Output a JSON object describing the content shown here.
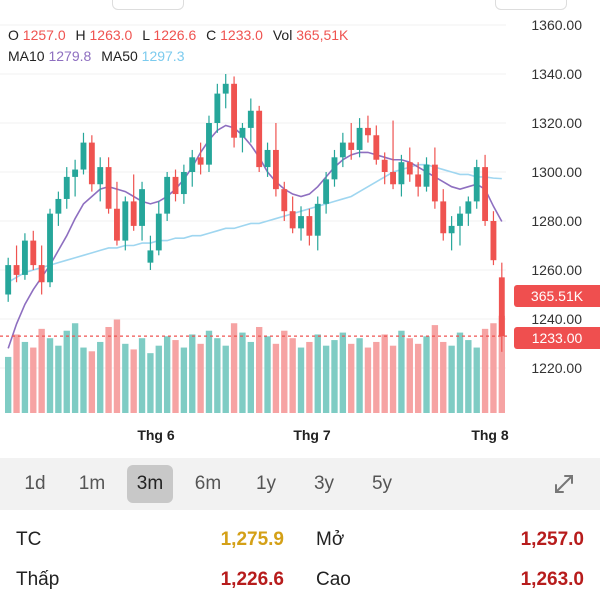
{
  "ohlc": {
    "o_label": "O",
    "o_value": "1257.0",
    "h_label": "H",
    "h_value": "1263.0",
    "l_label": "L",
    "l_value": "1226.6",
    "c_label": "C",
    "c_value": "1233.0",
    "vol_label": "Vol",
    "vol_value": "365,51K"
  },
  "ma": {
    "ma10_label": "MA10",
    "ma10_value": "1279.8",
    "ma50_label": "MA50",
    "ma50_value": "1297.3"
  },
  "badges": {
    "volume": "365.51K",
    "price": "1233.00"
  },
  "colors": {
    "up": "#26a69a",
    "down": "#ef5350",
    "ma10": "#8e6fc0",
    "ma50": "#9fd6f0",
    "accent": "#d4a017",
    "dark_red": "#b71c1c"
  },
  "chart_data": {
    "type": "candlestick",
    "ylim": [
      1200,
      1360
    ],
    "yticks": [
      "1360.00",
      "1340.00",
      "1320.00",
      "1300.00",
      "1280.00",
      "1260.00",
      "1240.00",
      "1220.00"
    ],
    "xticks": [
      "Thg 6",
      "Thg 7",
      "Thg 8"
    ],
    "candles": [
      [
        1250,
        1265,
        1247,
        1262
      ],
      [
        1262,
        1270,
        1255,
        1258
      ],
      [
        1258,
        1275,
        1256,
        1272
      ],
      [
        1272,
        1276,
        1260,
        1262
      ],
      [
        1262,
        1270,
        1250,
        1255
      ],
      [
        1255,
        1285,
        1253,
        1283
      ],
      [
        1283,
        1292,
        1278,
        1289
      ],
      [
        1289,
        1302,
        1285,
        1298
      ],
      [
        1298,
        1305,
        1290,
        1301
      ],
      [
        1301,
        1316,
        1299,
        1312
      ],
      [
        1312,
        1315,
        1292,
        1295
      ],
      [
        1295,
        1306,
        1288,
        1302
      ],
      [
        1302,
        1306,
        1283,
        1285
      ],
      [
        1285,
        1296,
        1270,
        1272
      ],
      [
        1272,
        1290,
        1268,
        1288
      ],
      [
        1288,
        1299,
        1276,
        1278
      ],
      [
        1278,
        1296,
        1272,
        1293
      ],
      [
        1263,
        1274,
        1260,
        1268
      ],
      [
        1268,
        1288,
        1266,
        1283
      ],
      [
        1283,
        1300,
        1280,
        1298
      ],
      [
        1298,
        1301,
        1288,
        1291
      ],
      [
        1291,
        1303,
        1287,
        1300
      ],
      [
        1300,
        1309,
        1294,
        1306
      ],
      [
        1306,
        1312,
        1299,
        1303
      ],
      [
        1303,
        1323,
        1300,
        1320
      ],
      [
        1320,
        1336,
        1316,
        1332
      ],
      [
        1332,
        1340,
        1326,
        1336
      ],
      [
        1336,
        1339,
        1310,
        1314
      ],
      [
        1314,
        1320,
        1308,
        1318
      ],
      [
        1318,
        1330,
        1312,
        1325
      ],
      [
        1325,
        1327,
        1300,
        1302
      ],
      [
        1302,
        1312,
        1298,
        1309
      ],
      [
        1309,
        1320,
        1290,
        1293
      ],
      [
        1293,
        1296,
        1280,
        1284
      ],
      [
        1284,
        1290,
        1275,
        1277
      ],
      [
        1277,
        1286,
        1272,
        1282
      ],
      [
        1282,
        1285,
        1270,
        1274
      ],
      [
        1274,
        1290,
        1268,
        1287
      ],
      [
        1287,
        1300,
        1283,
        1297
      ],
      [
        1297,
        1309,
        1294,
        1306
      ],
      [
        1306,
        1316,
        1302,
        1312
      ],
      [
        1312,
        1320,
        1305,
        1309
      ],
      [
        1309,
        1322,
        1306,
        1318
      ],
      [
        1318,
        1323,
        1312,
        1315
      ],
      [
        1315,
        1319,
        1303,
        1305
      ],
      [
        1305,
        1308,
        1295,
        1300
      ],
      [
        1300,
        1321,
        1293,
        1295
      ],
      [
        1295,
        1307,
        1290,
        1304
      ],
      [
        1304,
        1310,
        1296,
        1299
      ],
      [
        1299,
        1304,
        1290,
        1294
      ],
      [
        1294,
        1306,
        1292,
        1303
      ],
      [
        1303,
        1310,
        1285,
        1288
      ],
      [
        1288,
        1293,
        1272,
        1275
      ],
      [
        1275,
        1282,
        1268,
        1278
      ],
      [
        1278,
        1286,
        1270,
        1283
      ],
      [
        1283,
        1290,
        1278,
        1288
      ],
      [
        1288,
        1305,
        1285,
        1302
      ],
      [
        1302,
        1307,
        1278,
        1280
      ],
      [
        1280,
        1284,
        1262,
        1264
      ],
      [
        1257,
        1263,
        1226.6,
        1233
      ]
    ],
    "volumes": [
      0.3,
      0.42,
      0.38,
      0.35,
      0.45,
      0.4,
      0.36,
      0.44,
      0.48,
      0.35,
      0.33,
      0.38,
      0.46,
      0.5,
      0.37,
      0.34,
      0.4,
      0.32,
      0.36,
      0.41,
      0.39,
      0.35,
      0.42,
      0.37,
      0.44,
      0.4,
      0.36,
      0.48,
      0.43,
      0.38,
      0.46,
      0.41,
      0.37,
      0.44,
      0.4,
      0.35,
      0.38,
      0.42,
      0.36,
      0.39,
      0.43,
      0.37,
      0.4,
      0.35,
      0.38,
      0.42,
      0.36,
      0.44,
      0.4,
      0.37,
      0.41,
      0.47,
      0.38,
      0.36,
      0.43,
      0.39,
      0.35,
      0.45,
      0.48,
      0.52
    ],
    "ma10": [
      1228,
      1238,
      1246,
      1252,
      1257,
      1262,
      1268,
      1274,
      1281,
      1287,
      1290,
      1293,
      1294,
      1293,
      1292,
      1290,
      1288,
      1287,
      1288,
      1290,
      1293,
      1297,
      1302,
      1308,
      1313,
      1317,
      1319,
      1318,
      1315,
      1311,
      1306,
      1300,
      1296,
      1293,
      1291,
      1290,
      1291,
      1294,
      1298,
      1302,
      1305,
      1307,
      1308,
      1308,
      1307,
      1306,
      1305,
      1305,
      1304,
      1302,
      1300,
      1298,
      1296,
      1294,
      1293,
      1294,
      1295,
      1293,
      1286,
      1279.8
    ],
    "ma50": [
      1255,
      1257,
      1259,
      1260,
      1261,
      1262,
      1263,
      1264,
      1265,
      1266,
      1267,
      1268,
      1269,
      1269,
      1270,
      1270,
      1271,
      1271,
      1272,
      1272,
      1273,
      1273,
      1274,
      1274,
      1275,
      1276,
      1277,
      1277,
      1278,
      1279,
      1279,
      1280,
      1281,
      1282,
      1283,
      1284,
      1285,
      1286,
      1287,
      1288,
      1289,
      1290,
      1292,
      1294,
      1296,
      1298,
      1300,
      1301,
      1302,
      1303,
      1303,
      1302,
      1301,
      1300,
      1299,
      1299,
      1298,
      1298,
      1297.5,
      1297.3
    ]
  },
  "range_tabs": [
    "1d",
    "1m",
    "3m",
    "6m",
    "1y",
    "3y",
    "5y"
  ],
  "active_tab": "3m",
  "stats": {
    "tc_label": "TC",
    "tc_value": "1,275.9",
    "mo_label": "Mở",
    "mo_value": "1,257.0",
    "thap_label": "Thấp",
    "thap_value": "1,226.6",
    "cao_label": "Cao",
    "cao_value": "1,263.0"
  }
}
